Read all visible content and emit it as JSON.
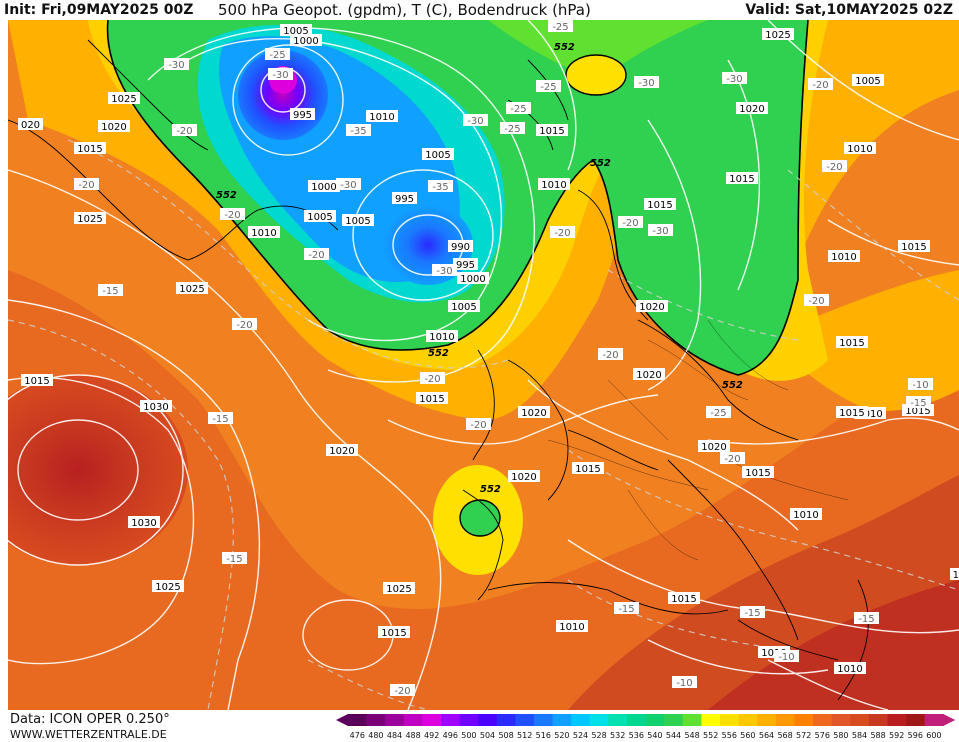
{
  "header": {
    "init": "Init: Fri,09MAY2025 00Z",
    "title": "500 hPa Geopot. (gpdm), T (C), Bodendruck (hPa)",
    "valid": "Valid: Sat,10MAY2025 02Z"
  },
  "footer": {
    "data_source": "Data: ICON OPER 0.250°",
    "site": "WWW.WETTERZENTRALE.DE"
  },
  "legend": {
    "values": [
      "476",
      "480",
      "484",
      "488",
      "492",
      "496",
      "500",
      "504",
      "508",
      "512",
      "516",
      "520",
      "524",
      "528",
      "532",
      "536",
      "540",
      "544",
      "548",
      "552",
      "556",
      "560",
      "564",
      "568",
      "572",
      "576",
      "580",
      "584",
      "588",
      "592",
      "596",
      "600"
    ],
    "colors": [
      "#5a005a",
      "#7a007a",
      "#9a009a",
      "#c000c0",
      "#dd00dd",
      "#a000ff",
      "#7000ff",
      "#4b00ff",
      "#2a2aff",
      "#2050ff",
      "#1a78ff",
      "#10a0ff",
      "#00c8ff",
      "#00e0e8",
      "#00e0b0",
      "#00d890",
      "#10d070",
      "#30d050",
      "#60e030",
      "#ffff00",
      "#ffe000",
      "#ffc800",
      "#ffb000",
      "#ff9800",
      "#ff8000",
      "#f06820",
      "#e05828",
      "#d84a20",
      "#c83820",
      "#b82020",
      "#a01818",
      "#c0207a"
    ]
  },
  "labels": {
    "pressure": [
      {
        "t": "1005"
      },
      {
        "t": "1000"
      },
      {
        "t": "995"
      },
      {
        "t": "1025"
      },
      {
        "t": "1020"
      },
      {
        "t": "020"
      },
      {
        "t": "1015"
      },
      {
        "t": "1010"
      },
      {
        "t": "1005"
      },
      {
        "t": "1000"
      },
      {
        "t": "1005"
      },
      {
        "t": "995"
      },
      {
        "t": "1005"
      },
      {
        "t": "1010"
      },
      {
        "t": "990"
      },
      {
        "t": "995"
      },
      {
        "t": "1000"
      },
      {
        "t": "1005"
      },
      {
        "t": "1010"
      },
      {
        "t": "1015"
      },
      {
        "t": "1015"
      },
      {
        "t": "1010"
      },
      {
        "t": "1015"
      },
      {
        "t": "1020"
      },
      {
        "t": "1025"
      },
      {
        "t": "1005"
      },
      {
        "t": "1010"
      },
      {
        "t": "1015"
      },
      {
        "t": "1020"
      },
      {
        "t": "1025"
      },
      {
        "t": "1025"
      },
      {
        "t": "1020"
      },
      {
        "t": "1020"
      },
      {
        "t": "1015"
      },
      {
        "t": "1020"
      },
      {
        "t": "1015"
      },
      {
        "t": "1010"
      },
      {
        "t": "1015"
      },
      {
        "t": "1015"
      },
      {
        "t": "1010"
      },
      {
        "t": "1015"
      },
      {
        "t": "1010"
      },
      {
        "t": "1030"
      },
      {
        "t": "1030"
      },
      {
        "t": "1025"
      },
      {
        "t": "1025"
      },
      {
        "t": "1015"
      },
      {
        "t": "1010"
      },
      {
        "t": "1010"
      },
      {
        "t": "1020"
      },
      {
        "t": "1015"
      },
      {
        "t": "1015"
      },
      {
        "t": "1015"
      },
      {
        "t": "1020"
      },
      {
        "t": "1010"
      },
      {
        "t": "10"
      }
    ],
    "temperature": [
      {
        "t": "-30"
      },
      {
        "t": "-25"
      },
      {
        "t": "-30"
      },
      {
        "t": "-20"
      },
      {
        "t": "-35"
      },
      {
        "t": "-30"
      },
      {
        "t": "-35"
      },
      {
        "t": "-25"
      },
      {
        "t": "-25"
      },
      {
        "t": "-30"
      },
      {
        "t": "-25"
      },
      {
        "t": "-30"
      },
      {
        "t": "-20"
      },
      {
        "t": "-20"
      },
      {
        "t": "-20"
      },
      {
        "t": "-30"
      },
      {
        "t": "-30"
      },
      {
        "t": "-25"
      },
      {
        "t": "-30"
      },
      {
        "t": "-20"
      },
      {
        "t": "-20"
      },
      {
        "t": "-15"
      },
      {
        "t": "-20"
      },
      {
        "t": "-20"
      },
      {
        "t": "-20"
      },
      {
        "t": "-20"
      },
      {
        "t": "-15"
      },
      {
        "t": "-20"
      },
      {
        "t": "-25"
      },
      {
        "t": "-20"
      },
      {
        "t": "-15"
      },
      {
        "t": "-15"
      },
      {
        "t": "-20"
      },
      {
        "t": "-15"
      },
      {
        "t": "-15"
      },
      {
        "t": "-10"
      },
      {
        "t": "-10"
      },
      {
        "t": "-10"
      },
      {
        "t": "-15"
      },
      {
        "t": "-20"
      },
      {
        "t": "-20"
      }
    ],
    "geopot_552": [
      "552",
      "552",
      "552",
      "552",
      "552",
      "552"
    ]
  }
}
